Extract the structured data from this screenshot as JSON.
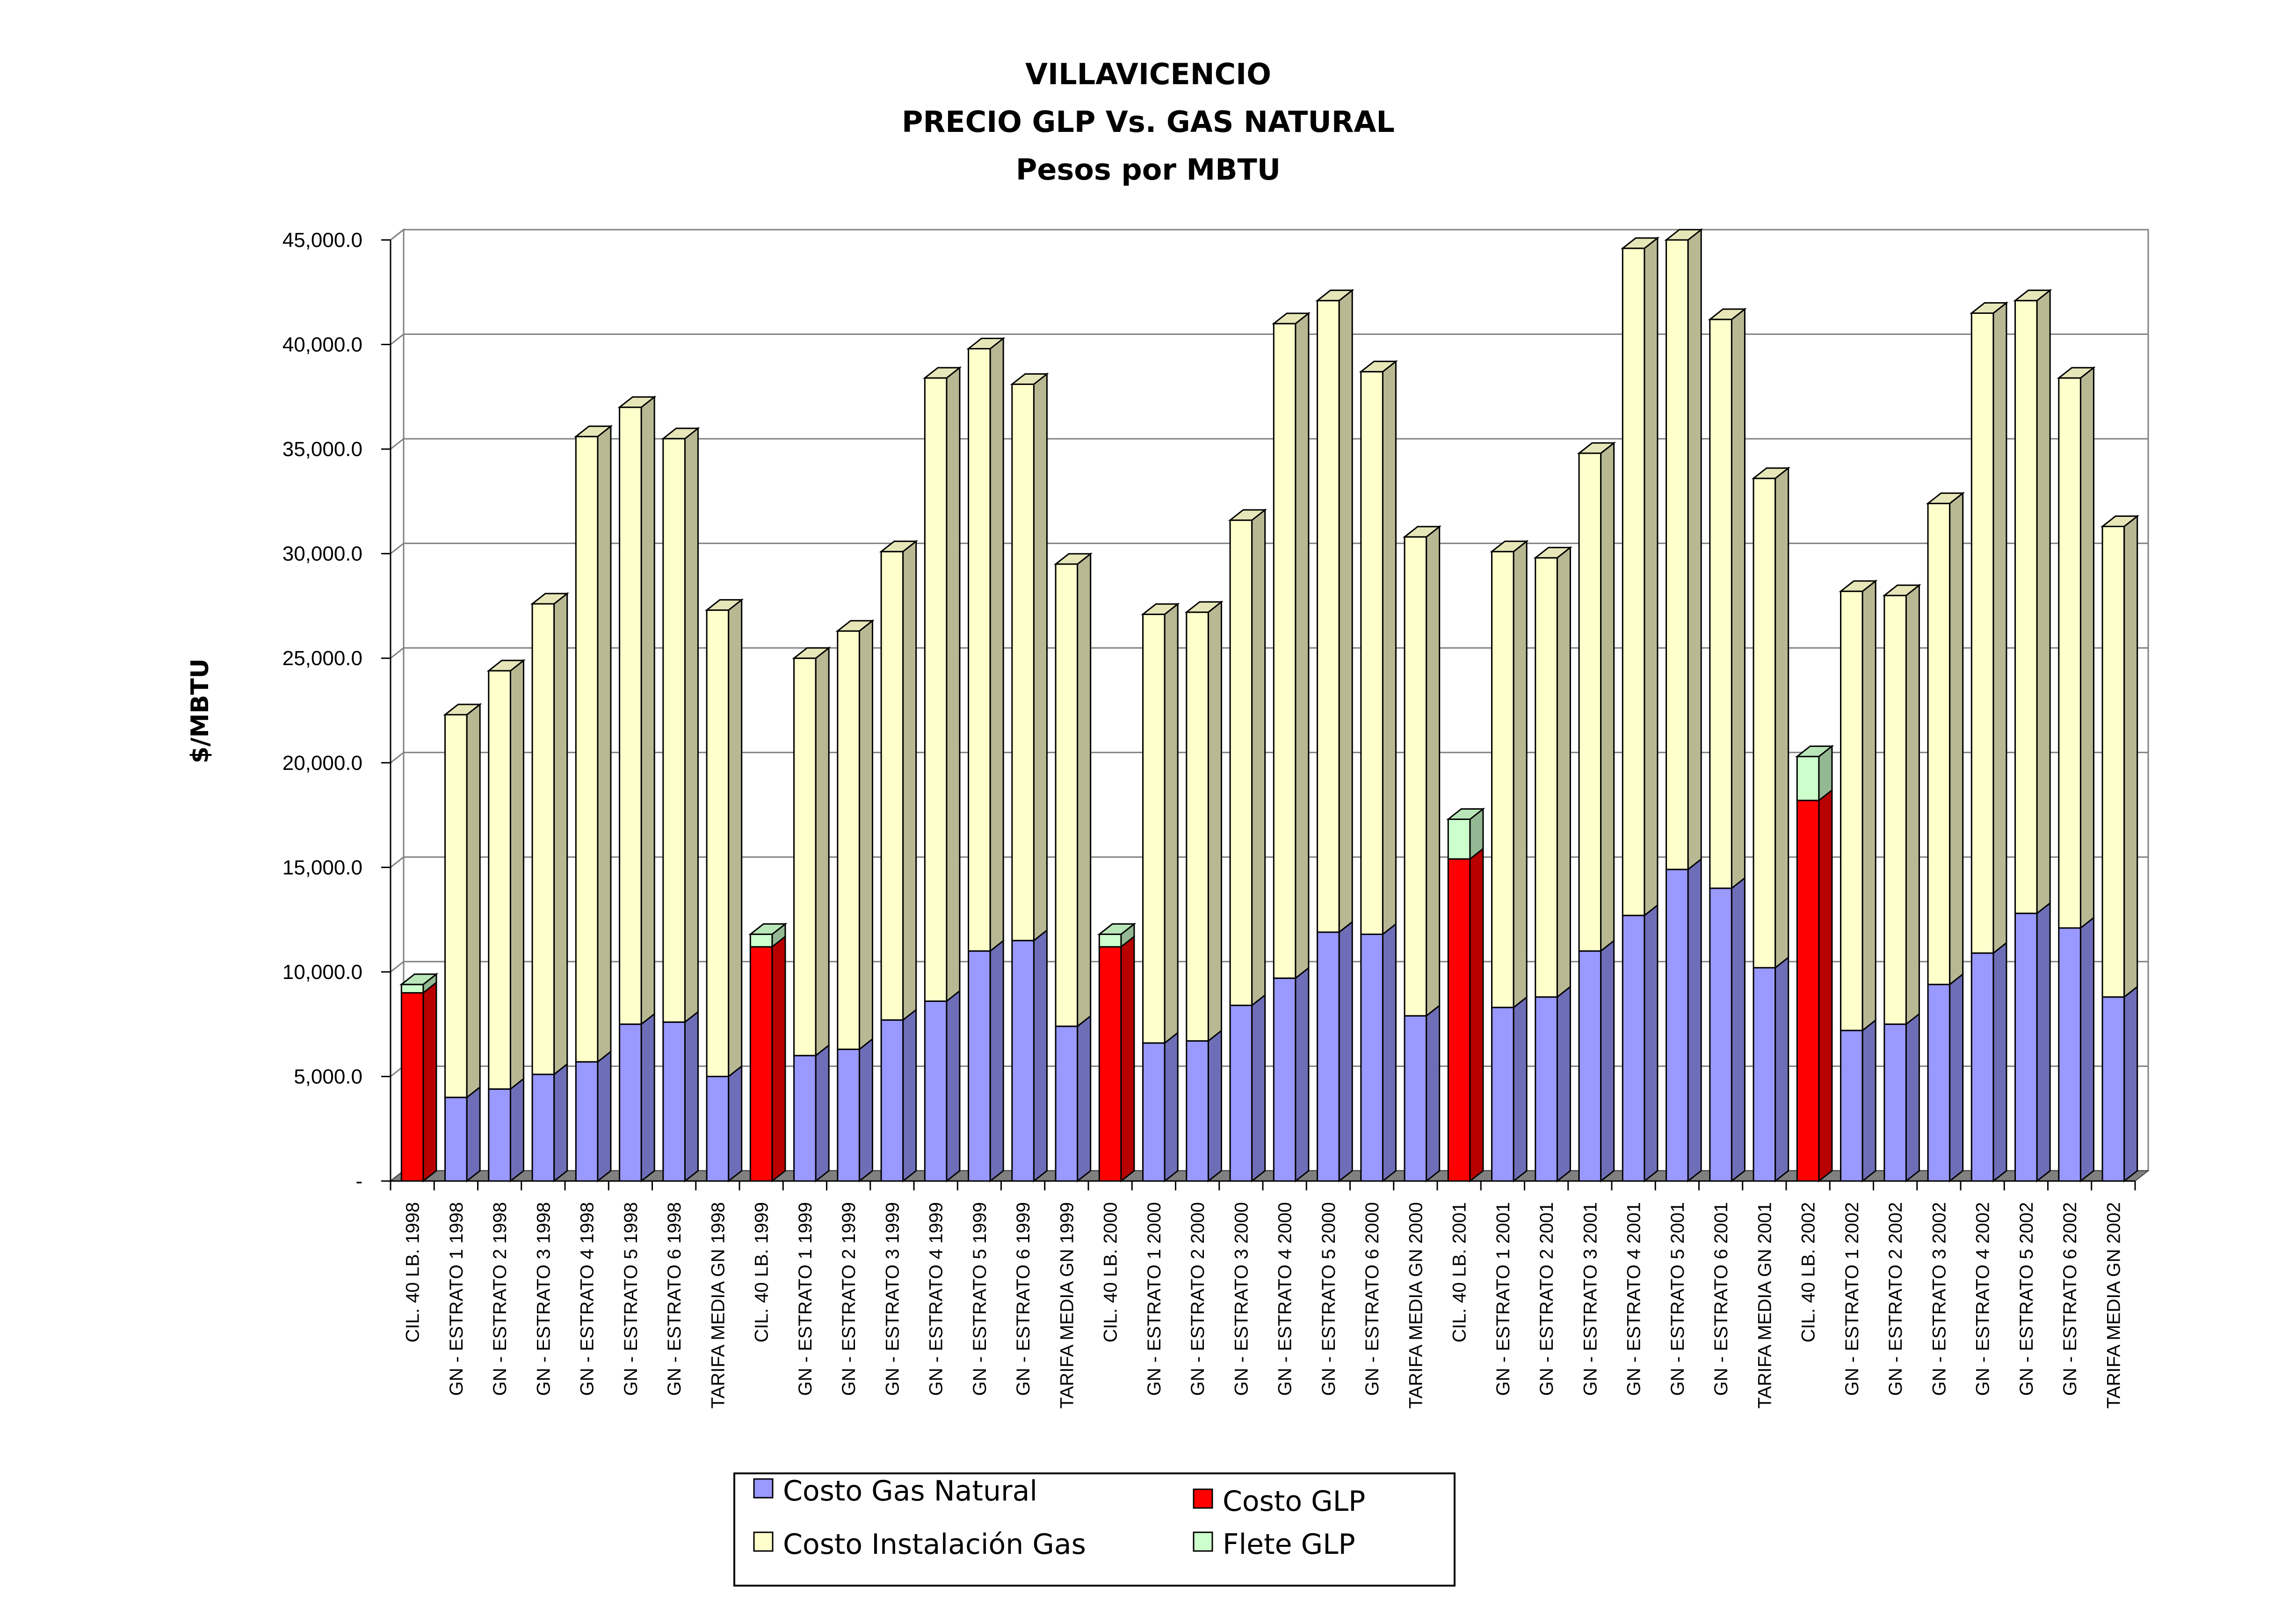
{
  "chart_data": {
    "type": "bar",
    "stacked": true,
    "three_d": true,
    "title_lines": [
      "VILLAVICENCIO",
      "PRECIO GLP Vs. GAS NATURAL",
      "Pesos por MBTU"
    ],
    "ylabel": "$/MBTU",
    "xlabel": "",
    "ylim": [
      0,
      45000
    ],
    "yticks": [
      0,
      5000,
      10000,
      15000,
      20000,
      25000,
      30000,
      35000,
      40000,
      45000
    ],
    "ytick_labels": [
      "-",
      "5,000.0",
      "10,000.0",
      "15,000.0",
      "20,000.0",
      "25,000.0",
      "30,000.0",
      "35,000.0",
      "40,000.0",
      "45,000.0"
    ],
    "grid": true,
    "legend_placement": "bottom-center",
    "categories": [
      "CIL. 40 LB. 1998",
      "GN - ESTRATO 1 1998",
      "GN - ESTRATO 2 1998",
      "GN - ESTRATO 3 1998",
      "GN - ESTRATO 4 1998",
      "GN - ESTRATO 5 1998",
      "GN - ESTRATO 6 1998",
      "TARIFA MEDIA GN 1998",
      "CIL. 40 LB. 1999",
      "GN - ESTRATO 1 1999",
      "GN - ESTRATO 2 1999",
      "GN - ESTRATO 3 1999",
      "GN - ESTRATO 4 1999",
      "GN - ESTRATO 5 1999",
      "GN - ESTRATO 6 1999",
      "TARIFA MEDIA GN 1999",
      "CIL. 40 LB. 2000",
      "GN - ESTRATO 1 2000",
      "GN - ESTRATO 2 2000",
      "GN - ESTRATO 3 2000",
      "GN - ESTRATO 4 2000",
      "GN - ESTRATO 5 2000",
      "GN - ESTRATO 6 2000",
      "TARIFA MEDIA GN 2000",
      "CIL. 40 LB. 2001",
      "GN - ESTRATO 1 2001",
      "GN - ESTRATO 2 2001",
      "GN - ESTRATO 3 2001",
      "GN - ESTRATO 4 2001",
      "GN - ESTRATO 5 2001",
      "GN - ESTRATO 6 2001",
      "TARIFA MEDIA GN 2001",
      "CIL. 40 LB. 2002",
      "GN - ESTRATO 1 2002",
      "GN - ESTRATO 2 2002",
      "GN - ESTRATO 3 2002",
      "GN - ESTRATO 4 2002",
      "GN - ESTRATO 5 2002",
      "GN - ESTRATO 6 2002",
      "TARIFA MEDIA GN 2002"
    ],
    "series": [
      {
        "name": "Costo Gas Natural",
        "color": "#9999ff",
        "values": [
          0,
          4000,
          4400,
          5100,
          5700,
          7500,
          7600,
          5000,
          0,
          6000,
          6300,
          7700,
          8600,
          11000,
          11500,
          7400,
          0,
          6600,
          6700,
          8400,
          9700,
          11900,
          11800,
          7900,
          0,
          8300,
          8800,
          11000,
          12700,
          14900,
          14000,
          10200,
          0,
          7200,
          7500,
          9400,
          10900,
          12800,
          12100,
          8800
        ]
      },
      {
        "name": "Costo GLP",
        "color": "#ff0000",
        "values": [
          9000,
          0,
          0,
          0,
          0,
          0,
          0,
          0,
          11200,
          0,
          0,
          0,
          0,
          0,
          0,
          0,
          11200,
          0,
          0,
          0,
          0,
          0,
          0,
          0,
          15400,
          0,
          0,
          0,
          0,
          0,
          0,
          0,
          18200,
          0,
          0,
          0,
          0,
          0,
          0,
          0
        ]
      },
      {
        "name": "Costo Instalación Gas",
        "color": "#ffffcc",
        "values": [
          0,
          18300,
          20000,
          22500,
          29900,
          29500,
          27900,
          22300,
          0,
          19000,
          20000,
          22400,
          29800,
          28800,
          26600,
          22100,
          0,
          20500,
          20500,
          23200,
          31300,
          30200,
          26900,
          22900,
          0,
          21800,
          21000,
          23800,
          31900,
          30100,
          27200,
          23400,
          0,
          21000,
          20500,
          23000,
          30600,
          29300,
          26300,
          22500
        ]
      },
      {
        "name": "Flete GLP",
        "color": "#ccffcc",
        "values": [
          400,
          0,
          0,
          0,
          0,
          0,
          0,
          0,
          600,
          0,
          0,
          0,
          0,
          0,
          0,
          0,
          600,
          0,
          0,
          0,
          0,
          0,
          0,
          0,
          1900,
          0,
          0,
          0,
          0,
          0,
          0,
          0,
          2100,
          0,
          0,
          0,
          0,
          0,
          0,
          0
        ]
      }
    ],
    "legend": {
      "entries": [
        {
          "label": "Costo Gas Natural",
          "color": "#9999ff"
        },
        {
          "label": "Costo GLP",
          "color": "#ff0000"
        },
        {
          "label": "Costo Instalación Gas",
          "color": "#ffffcc"
        },
        {
          "label": "Flete GLP",
          "color": "#ccffcc"
        }
      ]
    }
  }
}
